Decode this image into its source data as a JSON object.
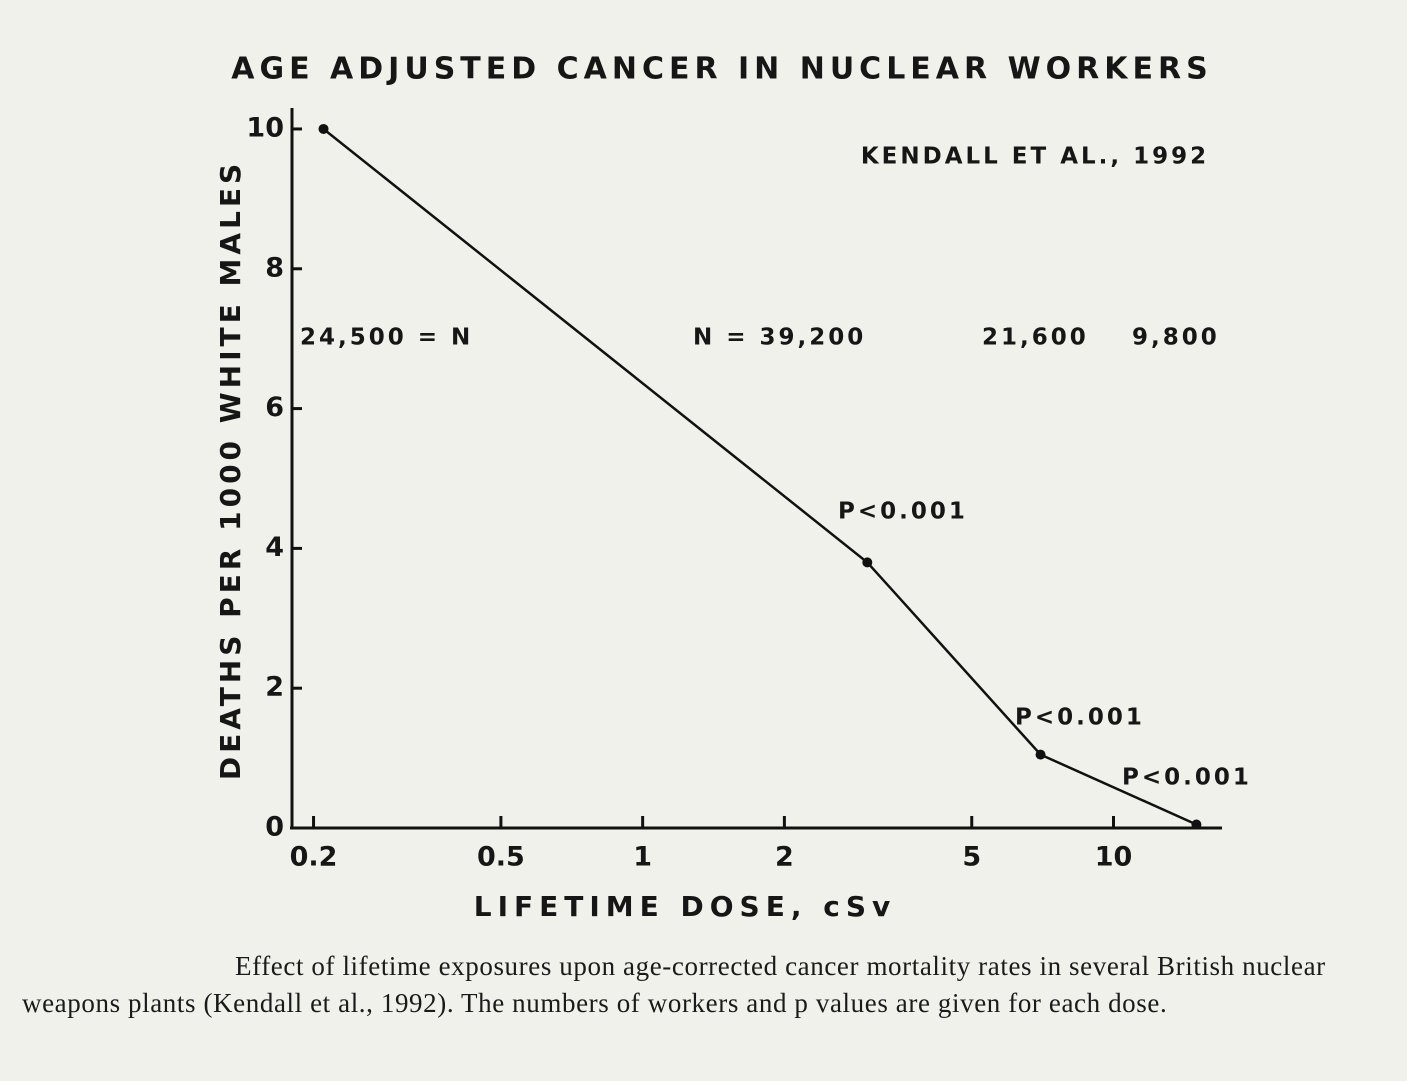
{
  "chart_data": {
    "type": "line",
    "title": "AGE ADJUSTED CANCER IN NUCLEAR WORKERS",
    "x_label": "LIFETIME DOSE, cSv",
    "y_label": "DEATHS PER 1000 WHITE MALES",
    "log_x": true,
    "x": [
      0.21,
      3,
      7,
      15
    ],
    "series": [
      {
        "color": "#111111",
        "values": [
          10,
          3.8,
          1.05,
          0.05
        ]
      }
    ],
    "xlim": [
      0.18,
      17
    ],
    "xticks": [
      0.2,
      0.5,
      1,
      2,
      5,
      10
    ],
    "ylim": [
      0,
      10.3
    ],
    "yticks": [
      0,
      2,
      4,
      6,
      8,
      10
    ],
    "annotations": [
      "KENDALL ET AL., 1992",
      "24,500 = N",
      "N = 39,200",
      "21,600",
      "9,800",
      "P<0.001",
      "P<0.001",
      "P<0.001"
    ],
    "caption": "Effect of lifetime exposures upon age-corrected cancer mortality rates in several British nuclear weapons plants (Kendall et al., 1992). The numbers of workers and p values are given for each dose."
  }
}
